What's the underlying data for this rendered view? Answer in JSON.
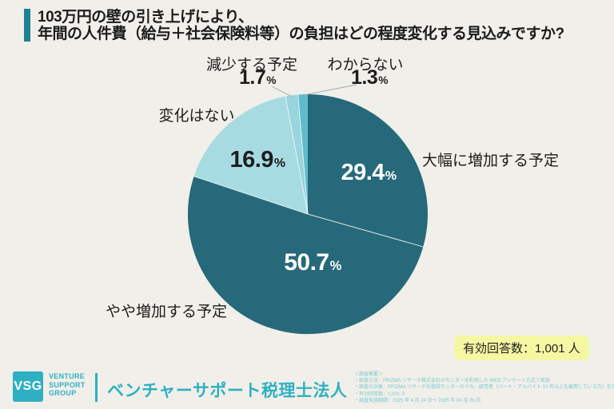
{
  "title": {
    "line1": "103万円の壁の引き上げにより、",
    "line2": "年間の人件費（給与＋社会保険料等）の負担はどの程度変化する見込みですか?"
  },
  "chart_data": {
    "type": "pie",
    "title": "103万円の壁の引き上げにより、年間の人件費（給与＋社会保険料等）の負担はどの程度変化する見込みですか?",
    "unit": "%",
    "total": 100,
    "start_angle": "12-oclock-clockwise",
    "legend_position": "labels-around-pie",
    "slices": [
      {
        "label": "大幅に増加する予定",
        "value": 29.4,
        "color": "#26697a",
        "value_label_color": "#ffffff"
      },
      {
        "label": "やや増加する予定",
        "value": 50.7,
        "color": "#26697a",
        "value_label_color": "#ffffff"
      },
      {
        "label": "変化はない",
        "value": 16.9,
        "color": "#a6dbe2",
        "value_label_color": "#1d1d1d"
      },
      {
        "label": "減少する予定",
        "value": 1.7,
        "color": "#98d5dd",
        "value_label_color": "#1d1d1d"
      },
      {
        "label": "わからない",
        "value": 1.3,
        "color": "#5fbdcb",
        "value_label_color": "#1d1d1d"
      }
    ]
  },
  "badge": {
    "text": "有効回答数：1,001 人"
  },
  "footer": {
    "logo_acronym": "VSG",
    "logo_words": [
      "VENTURE",
      "SUPPORT",
      "GROUP"
    ],
    "company_name": "ベンチャーサポート税理士法人",
    "survey_notes": [
      "＜調査概要＞",
      "・調査方法：PRIZMA リサーチ株式会社のモニターを利用した WEB アンケート方式で実施",
      "・調査の対象：PRIZMA リサーチ社登録モニターのうち、経営者（パート・アルバイト 10 名以上を雇用している方）を対象に実施",
      "・有効回答数：1,001 人",
      "・調査実施期間：2025 年 4 月 24 日～ 2025 年 04 月 26 日"
    ]
  },
  "colors": {
    "background": "#f1efe9",
    "title_bar": "#1d8292",
    "pie_dark": "#26697a",
    "pie_light": "#a6dbe2",
    "pie_decrease": "#98d5dd",
    "pie_unknown": "#5fbdcb",
    "badge_background": "#f6f7a3",
    "brand_teal": "#2fb0c2"
  }
}
